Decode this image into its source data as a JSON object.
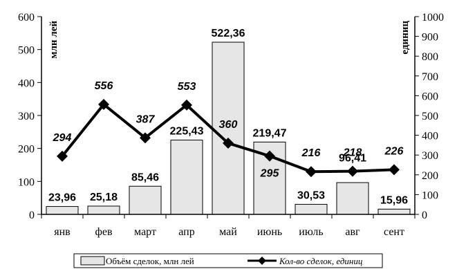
{
  "chart_data": {
    "type": "bar",
    "categories": [
      "янв",
      "фев",
      "март",
      "апр",
      "май",
      "июнь",
      "июль",
      "авг",
      "сент"
    ],
    "series": [
      {
        "name": "Объём сделок, млн лей",
        "type": "bar",
        "axis": "left",
        "values": [
          23.96,
          25.18,
          85.46,
          225.43,
          522.36,
          219.47,
          30.53,
          96.41,
          15.96
        ],
        "labels": [
          "23,96",
          "25,18",
          "85,46",
          "225,43",
          "522,36",
          "219,47",
          "30,53",
          "96,41",
          "15,96"
        ],
        "color": "#e6e6e6"
      },
      {
        "name": "Кол-во сделок, единиц",
        "type": "line",
        "axis": "right",
        "values": [
          294,
          556,
          387,
          553,
          360,
          295,
          216,
          218,
          226
        ],
        "labels": [
          "294",
          "556",
          "387",
          "553",
          "360",
          "295",
          "216",
          "218",
          "226"
        ],
        "color": "#000000"
      }
    ],
    "ylabel": "млн лей",
    "y2label": "единиц",
    "ylim": [
      0,
      600
    ],
    "y2lim": [
      0,
      1000
    ],
    "yticks": [
      "0",
      "100",
      "200",
      "300",
      "400",
      "500",
      "600"
    ],
    "y2ticks": [
      "0",
      "100",
      "200",
      "300",
      "400",
      "500",
      "600",
      "700",
      "800",
      "900",
      "1000"
    ],
    "grid": false,
    "legend": "bottom"
  }
}
